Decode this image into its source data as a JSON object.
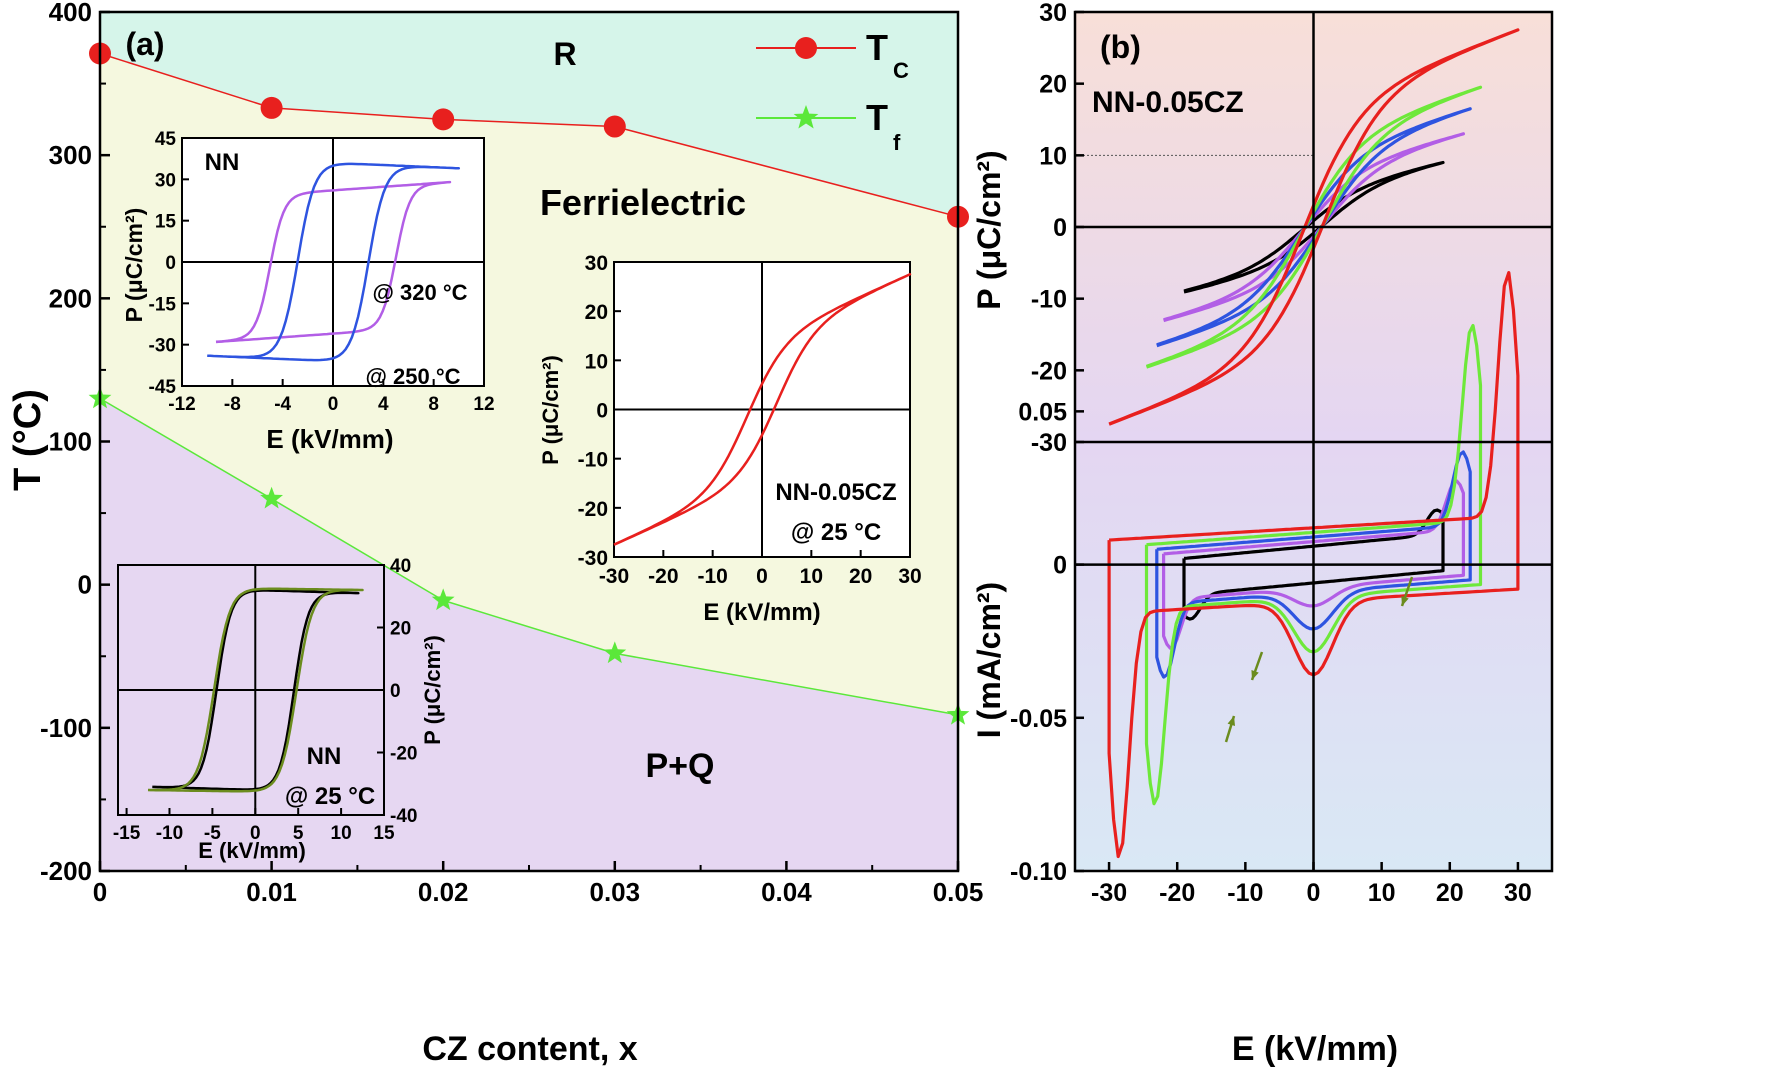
{
  "chart_data": [
    {
      "panel": "(a)",
      "type": "line",
      "title": "",
      "xlabel": "CZ content, x",
      "ylabel": "T (°C)",
      "xlim": [
        0,
        0.05
      ],
      "ylim": [
        -200,
        400
      ],
      "xticks": [
        "0",
        "0.01",
        "0.02",
        "0.03",
        "0.04",
        "0.05"
      ],
      "yticks": [
        "400",
        "300",
        "200",
        "100",
        "0",
        "-100",
        "-200"
      ],
      "x": [
        0,
        0.01,
        0.02,
        0.03,
        0.05
      ],
      "series": [
        {
          "name": "T",
          "subscript": "C",
          "color": "#e8201e",
          "marker": "circle",
          "values": [
            371,
            333,
            325,
            320,
            257
          ]
        },
        {
          "name": "T",
          "subscript": "f",
          "color": "#5be83a",
          "marker": "star",
          "values": [
            130,
            60,
            -11,
            -48,
            -91
          ]
        }
      ],
      "regions": [
        "R",
        "Ferrielectric",
        "P+Q"
      ],
      "colors": {
        "R": "#d6f5ea",
        "Ferrielectric": "#f5f8df",
        "PQ": "#e6d7f2",
        "region_text": "#ef7f2f"
      }
    },
    {
      "panel": "inset-NN",
      "type": "line",
      "xlabel": "E (kV/mm)",
      "ylabel": "P (μC/cm²)",
      "xlim": [
        -12,
        12
      ],
      "ylim": [
        -45,
        45
      ],
      "xticks": [
        "-12",
        "-8",
        "-4",
        "0",
        "4",
        "8",
        "12"
      ],
      "yticks": [
        "45",
        "30",
        "15",
        "0",
        "-15",
        "-30",
        "-45"
      ],
      "title": "NN",
      "series": [
        {
          "name": "@ 320 °C",
          "color": "#b25ee6"
        },
        {
          "name": "@ 250 °C",
          "color": "#2e54e0"
        }
      ]
    },
    {
      "panel": "inset-NN-25C",
      "type": "line",
      "xlabel": "E (kV/mm)",
      "ylabel": "P (μC/cm²)",
      "xlim": [
        -16,
        15
      ],
      "ylim": [
        -40,
        40
      ],
      "xticks": [
        "-15",
        "-10",
        "-5",
        "0",
        "5",
        "10",
        "15"
      ],
      "yticks": [
        "40",
        "20",
        "0",
        "-20",
        "-40"
      ],
      "labels": [
        "NN",
        "@ 25 °C"
      ],
      "series": [
        {
          "name": "olive",
          "color": "#6b8c1e"
        },
        {
          "name": "black",
          "color": "#000000"
        }
      ]
    },
    {
      "panel": "inset-NN-0.05CZ",
      "type": "line",
      "xlabel": "E (kV/mm)",
      "ylabel": "P (μC/cm²)",
      "xlim": [
        -30,
        30
      ],
      "ylim": [
        -30,
        30
      ],
      "xticks": [
        "-30",
        "-20",
        "-10",
        "0",
        "10",
        "20",
        "30"
      ],
      "yticks": [
        "30",
        "20",
        "10",
        "0",
        "-10",
        "-20",
        "-30"
      ],
      "labels": [
        "NN-0.05CZ",
        "@ 25 °C"
      ],
      "series": [
        {
          "name": "red",
          "color": "#e8201e"
        }
      ]
    },
    {
      "panel": "(b)",
      "type": "line",
      "subtitle": "NN-0.05CZ",
      "xlabel": "E (kV/mm)",
      "xlim": [
        -35,
        35
      ],
      "xticks": [
        "-30",
        "-20",
        "-10",
        "0",
        "10",
        "20",
        "30"
      ],
      "top": {
        "ylabel": "P (μC/cm²)",
        "ylim": [
          -30,
          30
        ],
        "yticks": [
          "30",
          "20",
          "10",
          "0",
          "-10",
          "-20",
          "-30"
        ]
      },
      "bottom": {
        "ylabel": "I (mA/cm²)",
        "ylim": [
          -0.1,
          0.04
        ],
        "yticks": [
          "0.05",
          "0",
          "-0.05",
          "-0.10"
        ]
      },
      "series": [
        {
          "name": "black",
          "color": "#000000",
          "Emax": 19,
          "Pmax": 9
        },
        {
          "name": "purple",
          "color": "#b25ee6",
          "Emax": 22,
          "Pmax": 13
        },
        {
          "name": "blue",
          "color": "#2e54e0",
          "Emax": 23,
          "Pmax": 16.5
        },
        {
          "name": "green",
          "color": "#6ee83a",
          "Emax": 24.5,
          "Pmax": 19.5
        },
        {
          "name": "red",
          "color": "#e8201e",
          "Emax": 30,
          "Pmax": 27.5
        }
      ]
    }
  ]
}
